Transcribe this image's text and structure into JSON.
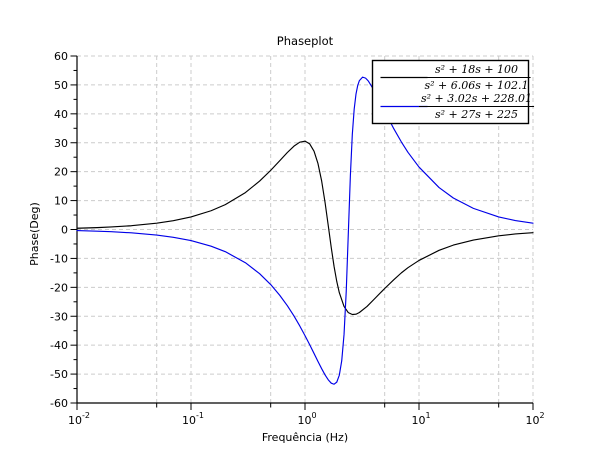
{
  "window": {
    "background": "#ffffff"
  },
  "chart_data": {
    "type": "line",
    "title": "Phaseplot",
    "xlabel": "Frequência (Hz)",
    "ylabel": "Phase(Deg)",
    "x_scale": "log",
    "xlim": [
      0.01,
      100
    ],
    "ylim": [
      -60,
      60
    ],
    "y_major_step": 10,
    "y_minor_step": 5,
    "grid": true,
    "grid_color": "#cccccc",
    "axis_color": "#000000",
    "x_major_ticks": [
      0.01,
      0.1,
      1,
      10,
      100
    ],
    "x_minor_ticks": [
      0.05,
      0.5,
      5,
      50
    ],
    "x_tick_labels": [
      {
        "base": "10",
        "exp": "-2"
      },
      {
        "base": "10",
        "exp": "-1"
      },
      {
        "base": "10",
        "exp": "0"
      },
      {
        "base": "10",
        "exp": "1"
      },
      {
        "base": "10",
        "exp": "2"
      }
    ],
    "y_tick_labels": [
      "60",
      "50",
      "40",
      "30",
      "20",
      "10",
      "0",
      "-10",
      "-20",
      "-30",
      "-40",
      "-50",
      "-60"
    ],
    "legend": {
      "position": "top-right",
      "entries": [
        {
          "numerator": "s² + 18s + 100",
          "denominator": "s² + 6.06s + 102.1",
          "color": "#000000"
        },
        {
          "numerator": "s² + 3.02s + 228.01",
          "denominator": "s² + 27s + 225",
          "color": "#0000e8"
        }
      ]
    },
    "series": [
      {
        "name": "(s²+18s+100)/(s²+6.06s+102.1)",
        "color": "#000000",
        "points": [
          [
            0.01,
            0.43
          ],
          [
            0.015,
            0.65
          ],
          [
            0.02,
            0.87
          ],
          [
            0.03,
            1.3
          ],
          [
            0.05,
            2.17
          ],
          [
            0.07,
            3.04
          ],
          [
            0.1,
            4.33
          ],
          [
            0.15,
            6.48
          ],
          [
            0.2,
            8.61
          ],
          [
            0.3,
            12.77
          ],
          [
            0.4,
            16.74
          ],
          [
            0.5,
            20.44
          ],
          [
            0.6,
            23.78
          ],
          [
            0.7,
            26.62
          ],
          [
            0.8,
            28.82
          ],
          [
            0.9,
            30.2
          ],
          [
            1.0,
            30.55
          ],
          [
            1.1,
            29.6
          ],
          [
            1.2,
            27.08
          ],
          [
            1.3,
            22.79
          ],
          [
            1.4,
            16.76
          ],
          [
            1.5,
            9.31
          ],
          [
            1.6,
            1.32
          ],
          [
            1.7,
            -6.3
          ],
          [
            1.8,
            -12.84
          ],
          [
            1.9,
            -18.0
          ],
          [
            2.0,
            -21.87
          ],
          [
            2.2,
            -26.6
          ],
          [
            2.4,
            -28.75
          ],
          [
            2.6,
            -29.4
          ],
          [
            2.8,
            -29.3
          ],
          [
            3.0,
            -28.7
          ],
          [
            3.5,
            -26.6
          ],
          [
            4.0,
            -24.3
          ],
          [
            5.0,
            -20.4
          ],
          [
            6.0,
            -17.4
          ],
          [
            7.0,
            -15.0
          ],
          [
            8.0,
            -13.2
          ],
          [
            10,
            -10.7
          ],
          [
            15,
            -7.2
          ],
          [
            20,
            -5.4
          ],
          [
            30,
            -3.65
          ],
          [
            50,
            -2.2
          ],
          [
            70,
            -1.55
          ],
          [
            100,
            -1.1
          ]
        ]
      },
      {
        "name": "(s²+3.02s+228.01)/(s²+27s+225)",
        "color": "#0000e8",
        "points": [
          [
            0.01,
            -0.38
          ],
          [
            0.015,
            -0.58
          ],
          [
            0.02,
            -0.77
          ],
          [
            0.03,
            -1.16
          ],
          [
            0.05,
            -1.93
          ],
          [
            0.07,
            -2.7
          ],
          [
            0.1,
            -3.84
          ],
          [
            0.15,
            -5.77
          ],
          [
            0.2,
            -7.67
          ],
          [
            0.3,
            -11.49
          ],
          [
            0.4,
            -15.28
          ],
          [
            0.5,
            -19.03
          ],
          [
            0.6,
            -22.73
          ],
          [
            0.7,
            -26.35
          ],
          [
            0.8,
            -29.9
          ],
          [
            0.9,
            -33.36
          ],
          [
            1.0,
            -36.69
          ],
          [
            1.1,
            -39.87
          ],
          [
            1.2,
            -42.86
          ],
          [
            1.3,
            -45.63
          ],
          [
            1.4,
            -48.13
          ],
          [
            1.5,
            -50.3
          ],
          [
            1.6,
            -52.0
          ],
          [
            1.7,
            -53.15
          ],
          [
            1.8,
            -53.51
          ],
          [
            1.9,
            -52.78
          ],
          [
            2.0,
            -50.37
          ],
          [
            2.1,
            -45.4
          ],
          [
            2.2,
            -36.29
          ],
          [
            2.3,
            -21.37
          ],
          [
            2.4,
            -1.1
          ],
          [
            2.5,
            18.57
          ],
          [
            2.6,
            32.87
          ],
          [
            2.7,
            41.6
          ],
          [
            2.8,
            46.8
          ],
          [
            2.9,
            49.8
          ],
          [
            3.0,
            51.5
          ],
          [
            3.2,
            52.7
          ],
          [
            3.4,
            52.35
          ],
          [
            3.6,
            51.3
          ],
          [
            4.0,
            48.4
          ],
          [
            4.5,
            44.5
          ],
          [
            5.0,
            40.9
          ],
          [
            6.0,
            34.9
          ],
          [
            7.0,
            30.3
          ],
          [
            8.0,
            26.7
          ],
          [
            10,
            21.6
          ],
          [
            15,
            14.5
          ],
          [
            20,
            10.9
          ],
          [
            30,
            7.3
          ],
          [
            50,
            4.35
          ],
          [
            70,
            3.1
          ],
          [
            100,
            2.18
          ]
        ]
      }
    ]
  }
}
